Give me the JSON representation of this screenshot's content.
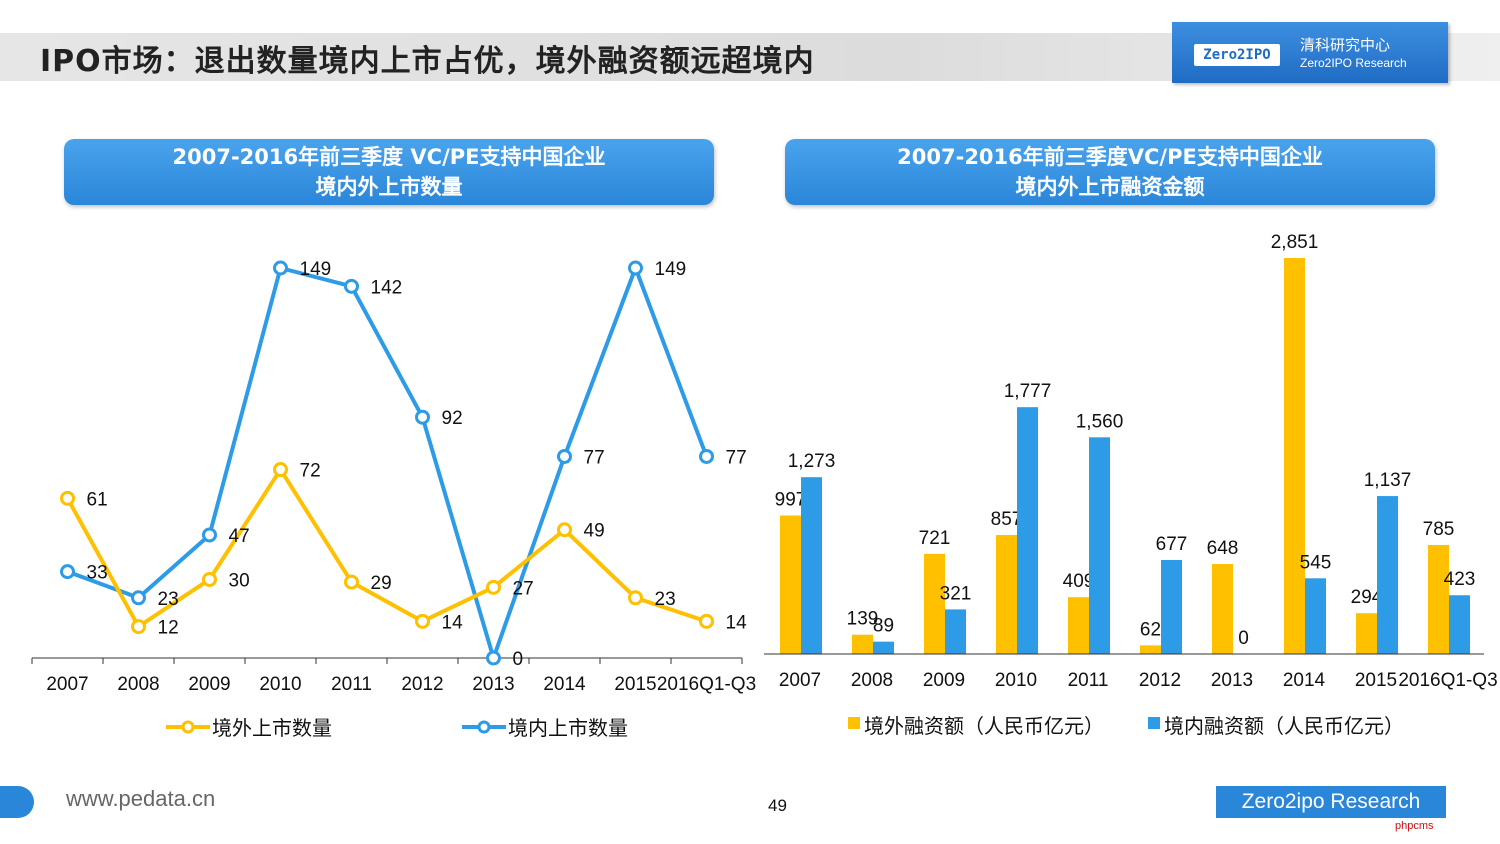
{
  "slide": {
    "title": "IPO市场：退出数量境内上市占优，境外融资额远超境内",
    "page_number": "49"
  },
  "logo": {
    "badge_text": "Zero2IPO",
    "name_cn": "清科研究中心",
    "name_en": "Zero2IPO Research"
  },
  "footer": {
    "url": "www.pedata.cn",
    "brand": "Zero2ipo Research",
    "watermark": "phpcms"
  },
  "colors": {
    "overseas": "#FFC000",
    "domestic": "#2E9BE6",
    "header": "#2a86d9"
  },
  "chart_data": [
    {
      "type": "line",
      "header_line1": "2007-2016年前三季度 VC/PE支持中国企业",
      "header_line2": "境内外上市数量",
      "categories": [
        "2007",
        "2008",
        "2009",
        "2010",
        "2011",
        "2012",
        "2013",
        "2014",
        "2015",
        "2016Q1-Q3"
      ],
      "series": [
        {
          "name": "境外上市数量",
          "values": [
            61,
            12,
            30,
            72,
            29,
            14,
            27,
            49,
            23,
            14
          ]
        },
        {
          "name": "境内上市数量",
          "values": [
            33,
            23,
            47,
            149,
            142,
            92,
            0,
            77,
            149,
            77
          ]
        }
      ],
      "ylim": [
        0,
        149
      ],
      "legend_position": "bottom",
      "grid": false
    },
    {
      "type": "bar",
      "header_line1": "2007-2016年前三季度VC/PE支持中国企业",
      "header_line2": "境内外上市融资金额",
      "categories": [
        "2007",
        "2008",
        "2009",
        "2010",
        "2011",
        "2012",
        "2013",
        "2014",
        "2015",
        "2016Q1-Q3"
      ],
      "series": [
        {
          "name": "境外融资额（人民币亿元）",
          "values": [
            997,
            139,
            721,
            857,
            409,
            62,
            648,
            2851,
            294,
            785
          ],
          "labels": [
            "997",
            "139",
            "721",
            "857",
            "409",
            "62",
            "648",
            "2,851",
            "294",
            "785"
          ]
        },
        {
          "name": "境内融资额（人民币亿元）",
          "values": [
            1273,
            89,
            321,
            1777,
            1560,
            677,
            0,
            545,
            1137,
            423
          ],
          "labels": [
            "1,273",
            "89",
            "321",
            "1,777",
            "1,560",
            "677",
            "0",
            "545",
            "1,137",
            "423"
          ]
        }
      ],
      "ylim": [
        0,
        2851
      ],
      "legend_position": "bottom",
      "grid": false
    }
  ]
}
